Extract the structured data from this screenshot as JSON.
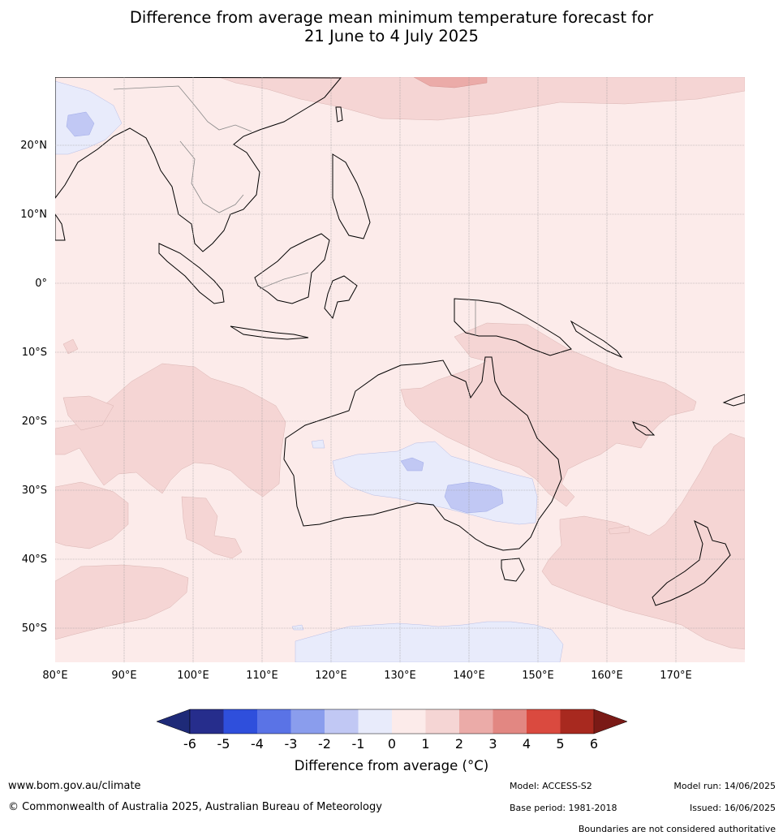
{
  "header": {
    "title_line1": "Difference from average mean minimum temperature forecast for",
    "title_line2": "21 June to 4 July 2025"
  },
  "map": {
    "lat_labels": [
      "20°N",
      "10°N",
      "0°",
      "10°S",
      "20°S",
      "30°S",
      "40°S",
      "50°S"
    ],
    "lon_labels": [
      "80°E",
      "90°E",
      "100°E",
      "110°E",
      "120°E",
      "130°E",
      "140°E",
      "150°E",
      "160°E",
      "170°E"
    ]
  },
  "legend": {
    "title": "Difference from average (°C)",
    "ticks": [
      "-6",
      "-5",
      "-4",
      "-3",
      "-2",
      "-1",
      "0",
      "1",
      "2",
      "3",
      "4",
      "5",
      "6"
    ],
    "colors": [
      "#262d8c",
      "#2f4fdc",
      "#5a73e6",
      "#8a9ded",
      "#c1c8f4",
      "#e8ebfb",
      "#fcebea",
      "#f5d5d4",
      "#ebaba8",
      "#e28782",
      "#da4a3f",
      "#a8291f"
    ],
    "low_extend_color": "#1e2a78",
    "high_extend_color": "#7a1a16"
  },
  "footer": {
    "website": "www.bom.gov.au/climate",
    "copyright": "© Commonwealth of Australia 2025, Australian Bureau of Meteorology",
    "model": "Model: ACCESS-S2",
    "base_period": "Base period: 1981-2018",
    "model_run": "Model run: 14/06/2025",
    "issued": "Issued: 16/06/2025",
    "disclaimer": "Boundaries are not considered authoritative"
  }
}
